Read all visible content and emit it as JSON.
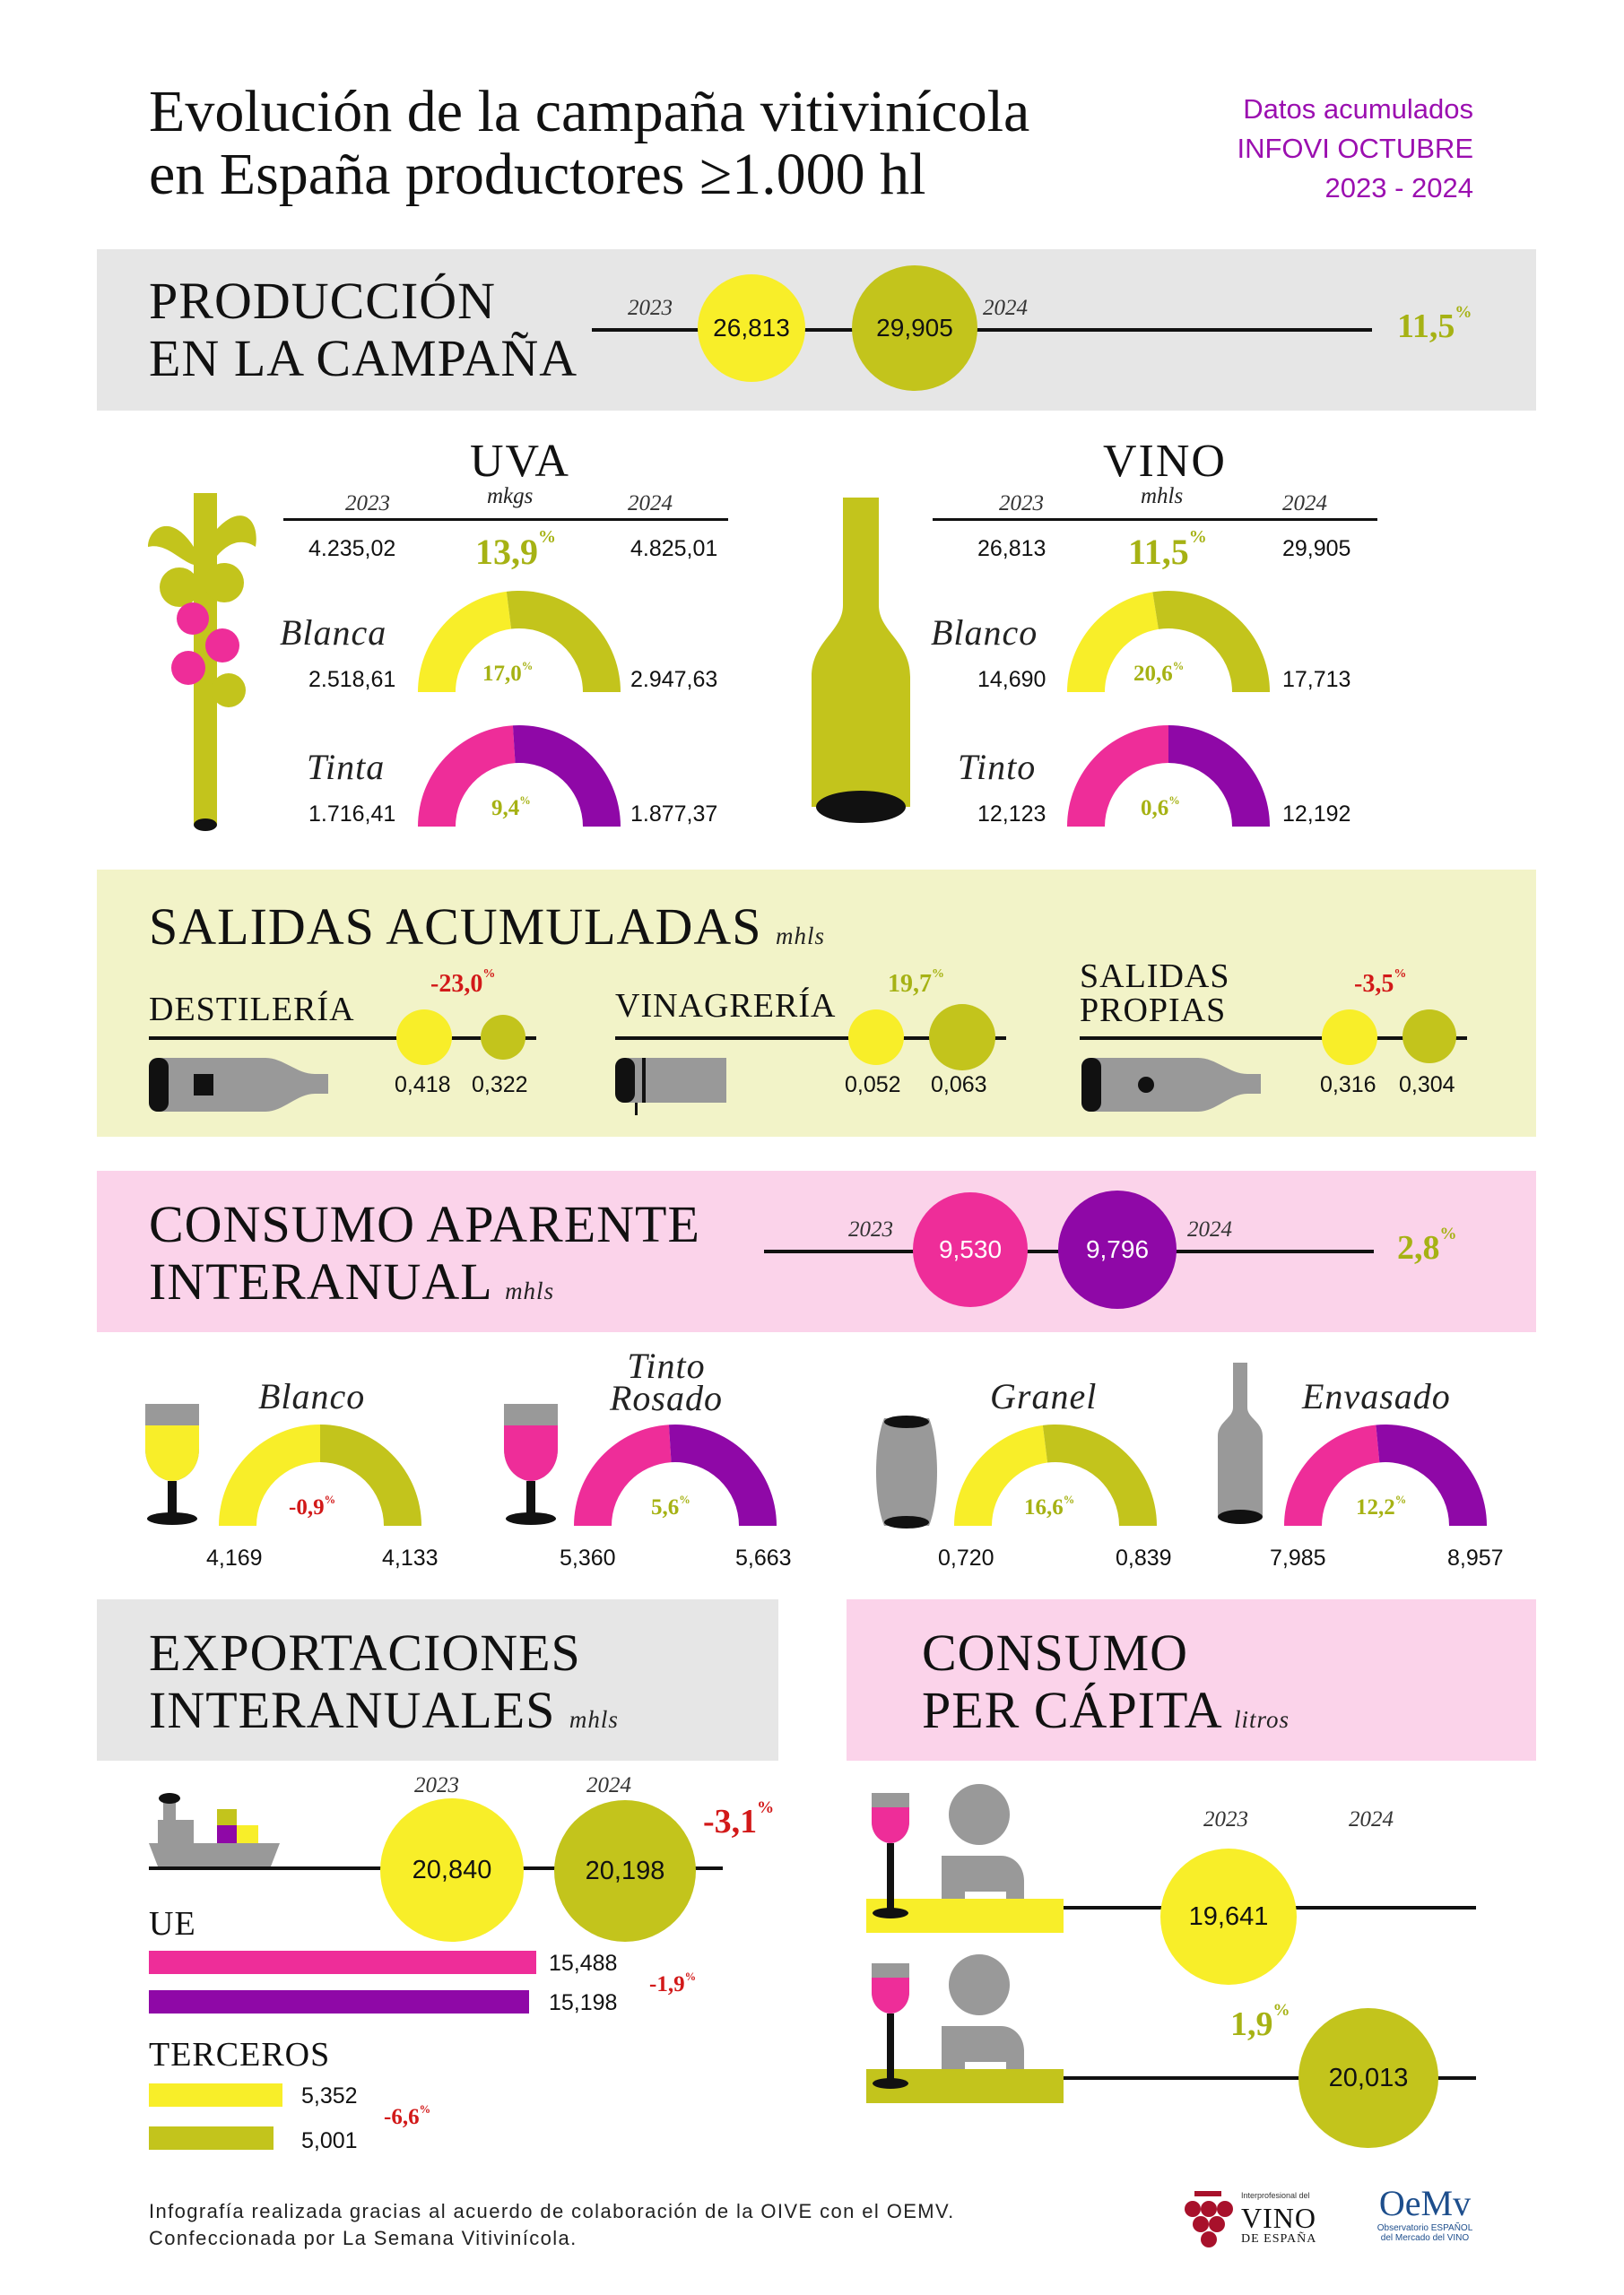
{
  "title": {
    "line1": "Evolución de la campaña vitivinícola",
    "line2": "en España productores ≥1.000 hl"
  },
  "source_note": {
    "line1": "Datos acumulados",
    "line2": "INFOVI OCTUBRE",
    "line3": "2023 - 2024"
  },
  "colors": {
    "yellow": "#f8ee29",
    "olive": "#c3c41c",
    "pink": "#ee2d99",
    "purple": "#8f08a7",
    "grey": "#999999",
    "green_text": "#a6b214",
    "red_text": "#d21919",
    "band_grey": "#e6e6e6",
    "band_cream": "#f2f3c8",
    "band_pink": "#fbd3ea"
  },
  "produccion": {
    "heading1": "PRODUCCIÓN",
    "heading2": "EN LA CAMPAÑA",
    "year_a": "2023",
    "year_b": "2024",
    "value_a": "26,813",
    "value_b": "29,905",
    "change": "11,5",
    "pct": "%"
  },
  "uva": {
    "title": "UVA",
    "unit": "mkgs",
    "year_a": "2023",
    "year_b": "2024",
    "total_a": "4.235,02",
    "total_b": "4.825,01",
    "total_change": "13,9",
    "blanca": {
      "label": "Blanca",
      "a": "2.518,61",
      "b": "2.947,63",
      "change": "17,0",
      "fraction_a": 0.46
    },
    "tinta": {
      "label": "Tinta",
      "a": "1.716,41",
      "b": "1.877,37",
      "change": "9,4",
      "fraction_a": 0.48
    }
  },
  "vino": {
    "title": "VINO",
    "unit": "mhls",
    "year_a": "2023",
    "year_b": "2024",
    "total_a": "26,813",
    "total_b": "29,905",
    "total_change": "11,5",
    "blanco": {
      "label": "Blanco",
      "a": "14,690",
      "b": "17,713",
      "change": "20,6",
      "fraction_a": 0.45
    },
    "tinto": {
      "label": "Tinto",
      "a": "12,123",
      "b": "12,192",
      "change": "0,6",
      "fraction_a": 0.5
    }
  },
  "salidas": {
    "heading": "SALIDAS ACUMULADAS",
    "unit": "mhls",
    "destileria": {
      "label": "DESTILERÍA",
      "a": "0,418",
      "b": "0,322",
      "change": "-23,0"
    },
    "vinagreria": {
      "label": "VINAGRERÍA",
      "a": "0,052",
      "b": "0,063",
      "change": "19,7"
    },
    "propias": {
      "label1": "SALIDAS",
      "label2": "PROPIAS",
      "a": "0,316",
      "b": "0,304",
      "change": "-3,5"
    }
  },
  "consumo": {
    "heading1": "CONSUMO APARENTE",
    "heading2": "INTERANUAL",
    "unit": "mhls",
    "year_a": "2023",
    "year_b": "2024",
    "value_a": "9,530",
    "value_b": "9,796",
    "change": "2,8"
  },
  "tipos": {
    "blanco": {
      "label": "Blanco",
      "a": "4,169",
      "b": "4,133",
      "change": "-0,9",
      "fraction_a": 0.5
    },
    "tinto_rosado": {
      "label1": "Tinto",
      "label2": "Rosado",
      "a": "5,360",
      "b": "5,663",
      "change": "5,6",
      "fraction_a": 0.48
    },
    "granel": {
      "label": "Granel",
      "a": "0,720",
      "b": "0,839",
      "change": "16,6",
      "fraction_a": 0.46
    },
    "envasado": {
      "label": "Envasado",
      "a": "7,985",
      "b": "8,957",
      "change": "12,2",
      "fraction_a": 0.47
    }
  },
  "exportaciones": {
    "heading1": "EXPORTACIONES",
    "heading2": "INTERANUALES",
    "unit": "mhls",
    "year_a": "2023",
    "year_b": "2024",
    "value_a": "20,840",
    "value_b": "20,198",
    "change": "-3,1",
    "ue": {
      "label": "UE",
      "a": 15.488,
      "b": 15.198,
      "a_label": "15,488",
      "b_label": "15,198",
      "change": "-1,9"
    },
    "terceros": {
      "label": "TERCEROS",
      "a": 5.352,
      "b": 5.001,
      "a_label": "5,352",
      "b_label": "5,001",
      "change": "-6,6"
    }
  },
  "per_capita": {
    "heading1": "CONSUMO",
    "heading2": "PER CÁPITA",
    "unit": "litros",
    "year_a": "2023",
    "year_b": "2024",
    "value_a": "19,641",
    "value_b": "20,013",
    "change": "1,9"
  },
  "footer": {
    "line1": "Infografía realizada gracias al acuerdo de colaboración de la OIVE con el OEMV.",
    "line2": "Confeccionada por La Semana Vitivinícola.",
    "logo1_small": "Interprofesional del",
    "logo1_big1": "VINO",
    "logo1_big2": "DE ESPAÑA",
    "logo2_big": "OeMv",
    "logo2_small1": "Observatorio ESPAÑOL",
    "logo2_small2": "del Mercado del VINO"
  }
}
